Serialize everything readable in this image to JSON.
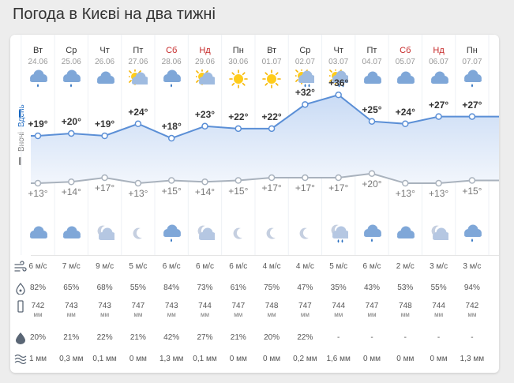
{
  "page_title": "Погода в Києві на два тижні",
  "labels": {
    "day": "Вдень",
    "night": "Вночі"
  },
  "days": [
    {
      "name": "Вт",
      "date": "24.06",
      "weekend": false,
      "day_icon": "cloud-rain-icon",
      "day_temp": "+19°",
      "night_temp": "+13°",
      "night_icon": "cloud-icon",
      "wind": "6 м/с",
      "humidity": "82%",
      "pressure": "742",
      "pressure_unit": "мм",
      "precip_prob": "20%",
      "precip": "1 мм"
    },
    {
      "name": "Ср",
      "date": "25.06",
      "weekend": false,
      "day_icon": "cloud-rain-icon",
      "day_temp": "+20°",
      "night_temp": "+14°",
      "night_icon": "cloud-icon",
      "wind": "7 м/с",
      "humidity": "65%",
      "pressure": "743",
      "pressure_unit": "мм",
      "precip_prob": "21%",
      "precip": "0,3 мм"
    },
    {
      "name": "Чт",
      "date": "26.06",
      "weekend": false,
      "day_icon": "cloud-icon",
      "day_temp": "+19°",
      "night_temp": "+17°",
      "night_icon": "moon-cloud-icon",
      "wind": "9 м/с",
      "humidity": "68%",
      "pressure": "743",
      "pressure_unit": "мм",
      "precip_prob": "22%",
      "precip": "0,1 мм"
    },
    {
      "name": "Пт",
      "date": "27.06",
      "weekend": false,
      "day_icon": "sun-cloud-icon",
      "day_temp": "+24°",
      "night_temp": "+13°",
      "night_icon": "moon-icon",
      "wind": "5 м/с",
      "humidity": "55%",
      "pressure": "747",
      "pressure_unit": "мм",
      "precip_prob": "21%",
      "precip": "0 мм"
    },
    {
      "name": "Сб",
      "date": "28.06",
      "weekend": true,
      "day_icon": "cloud-rain-icon",
      "day_temp": "+18°",
      "night_temp": "+15°",
      "night_icon": "cloud-rain-icon",
      "wind": "6 м/с",
      "humidity": "84%",
      "pressure": "743",
      "pressure_unit": "мм",
      "precip_prob": "42%",
      "precip": "1,3 мм"
    },
    {
      "name": "Нд",
      "date": "29.06",
      "weekend": true,
      "day_icon": "sun-cloud-icon",
      "day_temp": "+23°",
      "night_temp": "+14°",
      "night_icon": "moon-cloud-icon",
      "wind": "6 м/с",
      "humidity": "73%",
      "pressure": "744",
      "pressure_unit": "мм",
      "precip_prob": "27%",
      "precip": "0,1 мм"
    },
    {
      "name": "Пн",
      "date": "30.06",
      "weekend": false,
      "day_icon": "sun-icon",
      "day_temp": "+22°",
      "night_temp": "+15°",
      "night_icon": "moon-icon",
      "wind": "6 м/с",
      "humidity": "61%",
      "pressure": "747",
      "pressure_unit": "мм",
      "precip_prob": "21%",
      "precip": "0 мм"
    },
    {
      "name": "Вт",
      "date": "01.07",
      "weekend": false,
      "day_icon": "sun-icon",
      "day_temp": "+22°",
      "night_temp": "+17°",
      "night_icon": "moon-icon",
      "wind": "4 м/с",
      "humidity": "75%",
      "pressure": "748",
      "pressure_unit": "мм",
      "precip_prob": "20%",
      "precip": "0 мм"
    },
    {
      "name": "Ср",
      "date": "02.07",
      "weekend": false,
      "day_icon": "sun-cloud-rain-icon",
      "day_temp": "+32°",
      "night_temp": "+17°",
      "night_icon": "moon-icon",
      "wind": "4 м/с",
      "humidity": "47%",
      "pressure": "747",
      "pressure_unit": "мм",
      "precip_prob": "22%",
      "precip": "0,2 мм"
    },
    {
      "name": "Чт",
      "date": "03.07",
      "weekend": false,
      "day_icon": "sun-cloud-rain-icon",
      "day_temp": "+36°",
      "night_temp": "+17°",
      "night_icon": "moon-cloud-rain-icon",
      "wind": "5 м/с",
      "humidity": "35%",
      "pressure": "744",
      "pressure_unit": "мм",
      "precip_prob": "-",
      "precip": "1,6 мм"
    },
    {
      "name": "Пт",
      "date": "04.07",
      "weekend": false,
      "day_icon": "cloud-icon",
      "day_temp": "+25°",
      "night_temp": "+20°",
      "night_icon": "cloud-rain-icon",
      "wind": "6 м/с",
      "humidity": "43%",
      "pressure": "747",
      "pressure_unit": "мм",
      "precip_prob": "-",
      "precip": "0 мм"
    },
    {
      "name": "Сб",
      "date": "05.07",
      "weekend": true,
      "day_icon": "cloud-icon",
      "day_temp": "+24°",
      "night_temp": "+13°",
      "night_icon": "cloud-icon",
      "wind": "2 м/с",
      "humidity": "53%",
      "pressure": "748",
      "pressure_unit": "мм",
      "precip_prob": "-",
      "precip": "0 мм"
    },
    {
      "name": "Нд",
      "date": "06.07",
      "weekend": true,
      "day_icon": "cloud-icon",
      "day_temp": "+27°",
      "night_temp": "+13°",
      "night_icon": "moon-cloud-icon",
      "wind": "3 м/с",
      "humidity": "55%",
      "pressure": "744",
      "pressure_unit": "мм",
      "precip_prob": "-",
      "precip": "0 мм"
    },
    {
      "name": "Пн",
      "date": "07.07",
      "weekend": false,
      "day_icon": "cloud-rain-icon",
      "day_temp": "+27°",
      "night_temp": "+15°",
      "night_icon": "cloud-rain-icon",
      "wind": "3 м/с",
      "humidity": "94%",
      "pressure": "742",
      "pressure_unit": "мм",
      "precip_prob": "-",
      "precip": "1,3 мм"
    }
  ],
  "day_temps": [
    19,
    20,
    19,
    24,
    18,
    23,
    22,
    22,
    32,
    36,
    25,
    24,
    27,
    27
  ],
  "night_temps": [
    13,
    14,
    17,
    13,
    15,
    14,
    15,
    17,
    17,
    17,
    20,
    13,
    13,
    15
  ],
  "row_icons": [
    "wind-icon",
    "humidity-icon",
    "pressure-icon",
    "precip-probability-icon",
    "precip-amount-icon"
  ],
  "colors": {
    "day_line": "#5b8fd6",
    "night_line": "#a9b2bd",
    "accent": "#1565c0",
    "weekend": "#c62828"
  }
}
